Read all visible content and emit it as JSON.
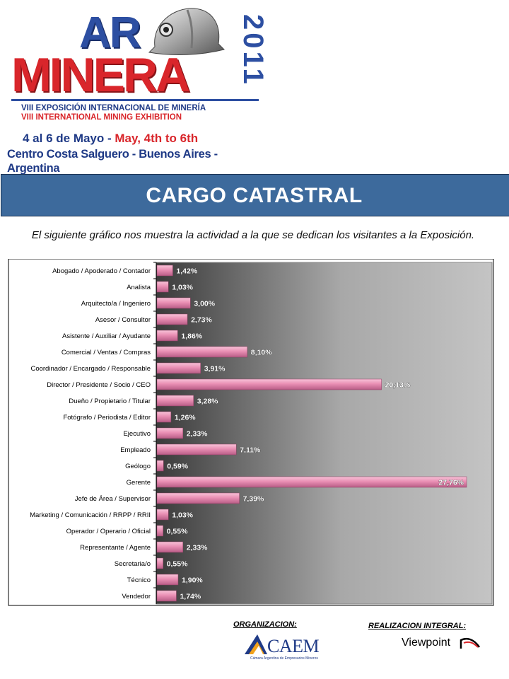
{
  "logo": {
    "ar": "AR",
    "minera": "MINERA",
    "year": "2011",
    "subtitle_es": "VIII EXPOSICIÓN INTERNACIONAL DE MINERÍA",
    "subtitle_en": "VIII INTERNATIONAL MINING EXHIBITION",
    "date_es": "4 al 6 de Mayo - ",
    "date_en": "May, 4th to 6th",
    "venue": "Centro Costa Salguero - Buenos Aires - Argentina"
  },
  "banner": {
    "title": "CARGO CATASTRAL"
  },
  "intro": "El siguiente gráfico nos muestra la actividad a la que se dedican los visitantes a la Exposición.",
  "chart_data": {
    "type": "bar",
    "orientation": "horizontal",
    "categories": [
      "Abogado / Apoderado / Contador",
      "Analista",
      "Arquitecto/a / Ingeniero",
      "Asesor / Consultor",
      "Asistente / Auxiliar / Ayudante",
      "Comercial / Ventas / Compras",
      "Coordinador / Encargado / Responsable",
      "Director / Presidente / Socio / CEO",
      "Dueño / Propietario / Titular",
      "Fotógrafo / Periodista / Editor",
      "Ejecutivo",
      "Empleado",
      "Geólogo",
      "Gerente",
      "Jefe de Área / Supervisor",
      "Marketing / Comunicación / RRPP / RRII",
      "Operador / Operario / Oficial",
      "Representante / Agente",
      "Secretaria/o",
      "Técnico",
      "Vendedor"
    ],
    "values": [
      1.42,
      1.03,
      3.0,
      2.73,
      1.86,
      8.1,
      3.91,
      20.13,
      3.28,
      1.26,
      2.33,
      7.11,
      0.59,
      27.76,
      7.39,
      1.03,
      0.55,
      2.33,
      0.55,
      1.9,
      1.74
    ],
    "value_labels": [
      "1,42%",
      "1,03%",
      "3,00%",
      "2,73%",
      "1,86%",
      "8,10%",
      "3,91%",
      "20,13%",
      "3,28%",
      "1,26%",
      "2,33%",
      "7,11%",
      "0,59%",
      "27,76%",
      "7,39%",
      "1,03%",
      "0,55%",
      "2,33%",
      "0,55%",
      "1,90%",
      "1,74%"
    ],
    "xlim": [
      0,
      30
    ],
    "grid": false,
    "legend": "none",
    "bar_color": "#e98fb4",
    "background": "gradient dark gray to light gray"
  },
  "footer": {
    "organizacion_label": "ORGANIZACION:",
    "realizacion_label": "REALIZACION INTEGRAL:",
    "caem_name": "CAEM",
    "caem_subtitle": "Cámara Argentina de Empresarios Mineros",
    "viewpoint_name": "Viewpoint"
  }
}
